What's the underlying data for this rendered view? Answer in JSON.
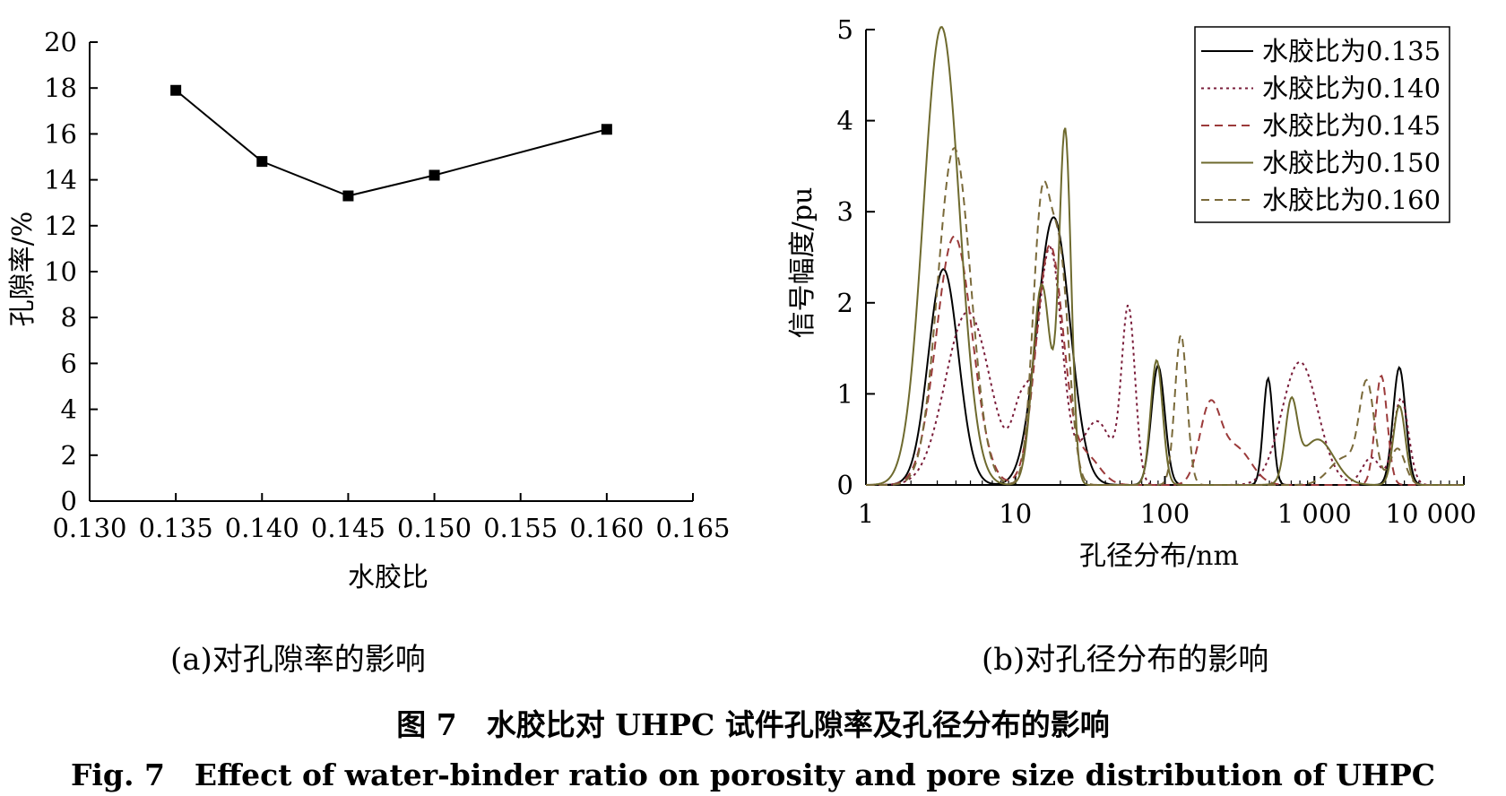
{
  "chart_data": [
    {
      "type": "line",
      "panel_label": "(a)对孔隙率的影响",
      "xlabel": "水胶比",
      "ylabel": "孔隙率/%",
      "xlim": [
        0.13,
        0.165
      ],
      "ylim": [
        0,
        20
      ],
      "xticks": [
        "0.130",
        "0.135",
        "0.140",
        "0.145",
        "0.150",
        "0.155",
        "0.160",
        "0.165"
      ],
      "yticks": [
        "0",
        "2",
        "4",
        "6",
        "8",
        "10",
        "12",
        "14",
        "16",
        "18",
        "20"
      ],
      "x": [
        0.135,
        0.14,
        0.145,
        0.15,
        0.16
      ],
      "series": [
        {
          "values": [
            17.9,
            14.8,
            13.3,
            14.2,
            16.2
          ],
          "color": "#000000",
          "marker": "square"
        }
      ],
      "grid": false
    },
    {
      "type": "line",
      "panel_label": "(b)对孔径分布的影响",
      "xlabel": "孔径分布/nm",
      "ylabel": "信号幅度/pu",
      "xscale": "log",
      "xlim": [
        1,
        10000
      ],
      "ylim": [
        0,
        5
      ],
      "xticks": [
        "1",
        "10",
        "100",
        "1 000",
        "10 000"
      ],
      "yticks": [
        "0",
        "1",
        "2",
        "3",
        "4",
        "5"
      ],
      "legend_position": "top-right",
      "grid": false,
      "series": [
        {
          "name": "水胶比为0.135",
          "color": "#000000",
          "dash": "solid",
          "peaks": [
            [
              3.3,
              2.37,
              0.1
            ],
            [
              18,
              2.94,
              0.11
            ],
            [
              90,
              1.31,
              0.045
            ],
            [
              490,
              1.17,
              0.032
            ],
            [
              3700,
              1.29,
              0.042
            ]
          ]
        },
        {
          "name": "水胶比为0.140",
          "color": "#7a1d3a",
          "dash": "dot",
          "peaks": [
            [
              4.8,
              1.9,
              0.15
            ],
            [
              11,
              0.78,
              0.06
            ],
            [
              17,
              2.6,
              0.08
            ],
            [
              35,
              0.7,
              0.1
            ],
            [
              57,
              1.9,
              0.045
            ],
            [
              800,
              1.35,
              0.12
            ],
            [
              2400,
              0.3,
              0.06
            ],
            [
              3800,
              0.95,
              0.05
            ]
          ]
        },
        {
          "name": "水胶比为0.145",
          "color": "#9b3a3a",
          "dash": "dash",
          "peaks": [
            [
              3.9,
              2.73,
              0.12
            ],
            [
              17,
              2.63,
              0.09
            ],
            [
              30,
              0.3,
              0.09
            ],
            [
              200,
              0.84,
              0.07
            ],
            [
              300,
              0.4,
              0.1
            ],
            [
              2800,
              1.2,
              0.04
            ]
          ]
        },
        {
          "name": "水胶比为0.150",
          "color": "#6e6a2e",
          "dash": "solid",
          "peaks": [
            [
              3.2,
              5.03,
              0.12
            ],
            [
              15,
              2.2,
              0.06
            ],
            [
              21.5,
              3.85,
              0.04
            ],
            [
              88,
              1.37,
              0.04
            ],
            [
              700,
              0.82,
              0.04
            ],
            [
              1050,
              0.5,
              0.11
            ],
            [
              3700,
              0.87,
              0.04
            ]
          ]
        },
        {
          "name": "水胶比为0.160",
          "color": "#7a6a3a",
          "dash": "dash",
          "peaks": [
            [
              3.9,
              3.7,
              0.11
            ],
            [
              15,
              3.0,
              0.06
            ],
            [
              20,
              2.3,
              0.06
            ],
            [
              128,
              1.65,
              0.04
            ],
            [
              2250,
              1.05,
              0.05
            ],
            [
              1600,
              0.3,
              0.1
            ],
            [
              3600,
              0.4,
              0.05
            ]
          ]
        }
      ]
    }
  ],
  "captions": {
    "fig_title_zh": "图 7　水胶比对 UHPC 试件孔隙率及孔径分布的影响",
    "fig_title_en": "Fig. 7　Effect of water-binder ratio on porosity and pore size distribution of UHPC"
  }
}
